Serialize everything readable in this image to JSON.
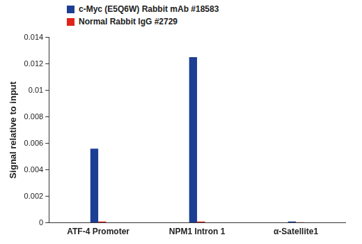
{
  "chart_data": {
    "type": "bar",
    "y_label": "Signal relative to input",
    "categories": [
      "ATF-4 Promoter",
      "NPM1 Intron 1",
      "α-Satellite1"
    ],
    "series": [
      {
        "name": "c-Myc (E5Q6W) Rabbit mAb #18583",
        "color": "#1c3f94",
        "values": [
          0.0056,
          0.0125,
          0.0001
        ]
      },
      {
        "name": "Normal Rabbit IgG #2729",
        "color": "#e2231a",
        "values": [
          0.0001,
          0.0001,
          5e-05
        ]
      }
    ],
    "ylim": [
      0,
      0.014
    ],
    "yticks": [
      0,
      0.002,
      0.004,
      0.006,
      0.008,
      0.01,
      0.012,
      0.014
    ],
    "grid": false,
    "legend": "top-left"
  }
}
